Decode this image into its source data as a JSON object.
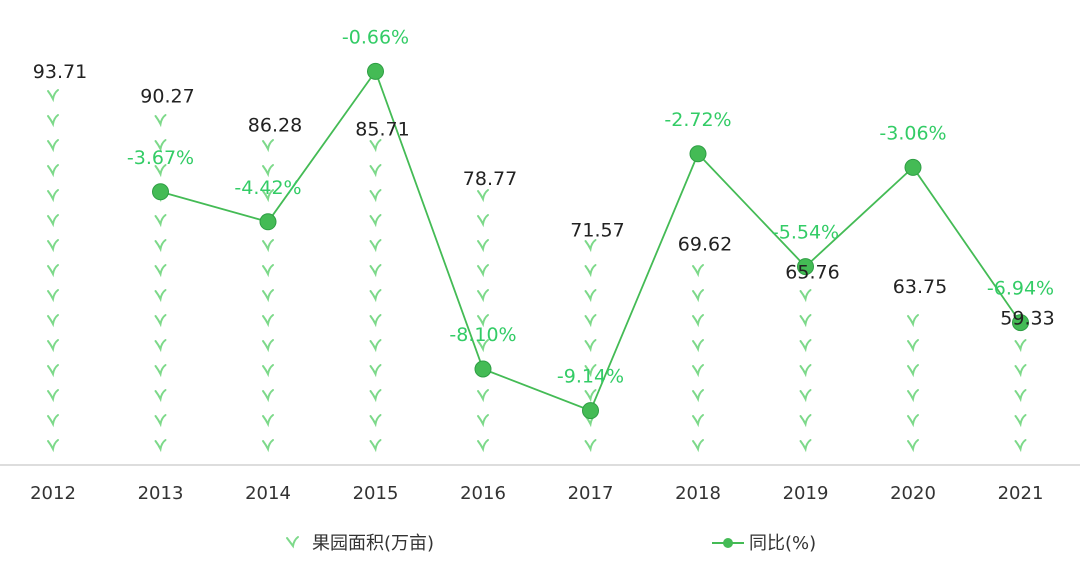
{
  "chart_data": {
    "type": "bar",
    "categories": [
      "2012",
      "2013",
      "2014",
      "2015",
      "2016",
      "2017",
      "2018",
      "2019",
      "2020",
      "2021"
    ],
    "series": [
      {
        "name": "果园面积(万亩)",
        "type": "pictorial-bar",
        "values": [
          93.71,
          90.27,
          86.28,
          85.71,
          78.77,
          71.57,
          69.62,
          65.76,
          63.75,
          59.33
        ],
        "labels": [
          "93.71",
          "90.27",
          "86.28",
          "85.71",
          "78.77",
          "71.57",
          "69.62",
          "65.76",
          "63.75",
          "59.33"
        ],
        "color": "#7dd98a"
      },
      {
        "name": "同比(%)",
        "type": "line",
        "values": [
          null,
          -3.67,
          -4.42,
          -0.66,
          -8.1,
          -9.14,
          -2.72,
          -5.54,
          -3.06,
          -6.94
        ],
        "labels": [
          "",
          "-3.67%",
          "-4.42%",
          "-0.66%",
          "-8.10%",
          "-9.14%",
          "-2.72%",
          "-5.54%",
          "-3.06%",
          "-6.94%"
        ],
        "color": "#44bb55"
      }
    ],
    "legend": {
      "position": "bottom"
    }
  }
}
